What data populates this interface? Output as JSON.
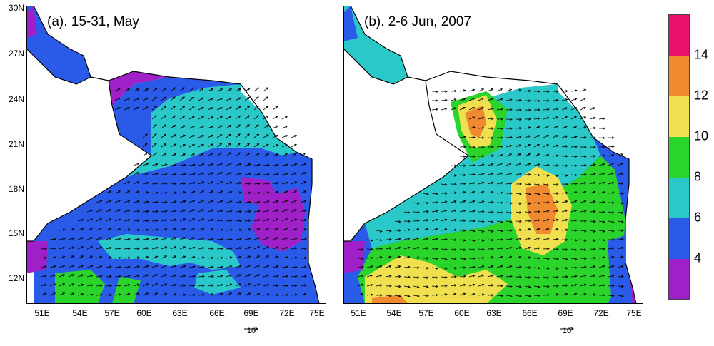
{
  "panels": [
    {
      "title": "(a). 15-31, May"
    },
    {
      "title": "(b). 2-6 Jun, 2007"
    }
  ],
  "lat_labels": [
    "30N",
    "27N",
    "24N",
    "21N",
    "18N",
    "15N",
    "12N"
  ],
  "lon_labels": [
    "51E",
    "54E",
    "57E",
    "60E",
    "63E",
    "66E",
    "69E",
    "72E",
    "75E"
  ],
  "ref_vector": "10",
  "colorbar": {
    "labels": [
      "14",
      "12",
      "10",
      "8",
      "6",
      "4"
    ],
    "colors": [
      "#e8106c",
      "#f08a30",
      "#f0e050",
      "#2ad42a",
      "#2ac8c8",
      "#2a5ae8",
      "#a020c8"
    ]
  },
  "colors": {
    "land": "#ffffff",
    "coast": "#000000",
    "arrow": "#000000"
  }
}
